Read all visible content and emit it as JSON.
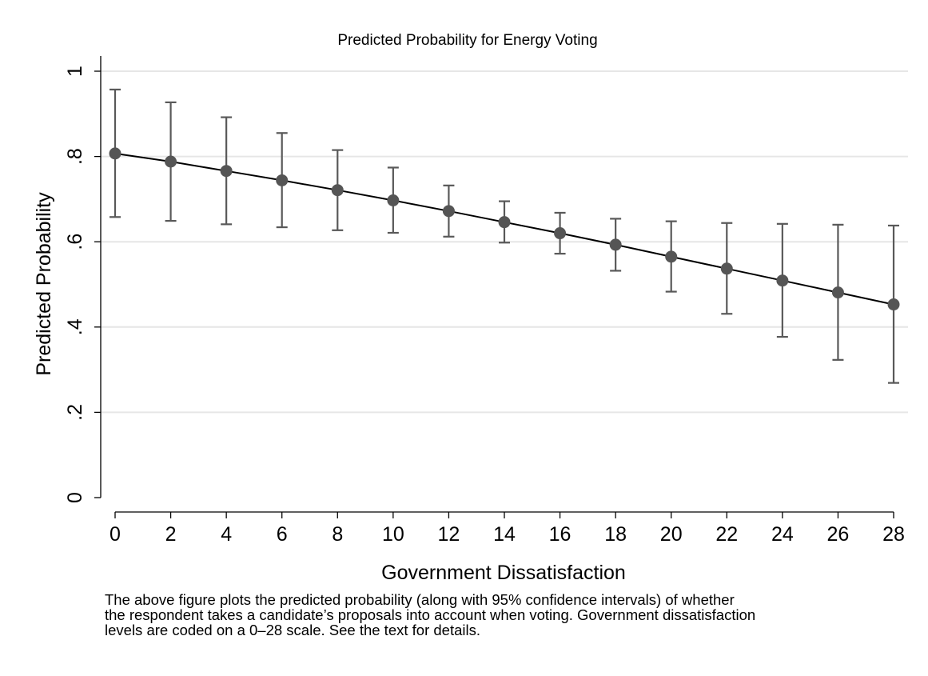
{
  "chart_data": {
    "type": "scatter",
    "title": "Predicted Probability for Energy Voting",
    "xlabel": "Government Dissatisfaction",
    "ylabel": "Predicted Probability",
    "xlim": [
      0,
      28
    ],
    "ylim": [
      0,
      1
    ],
    "xticks": [
      0,
      2,
      4,
      6,
      8,
      10,
      12,
      14,
      16,
      18,
      20,
      22,
      24,
      26,
      28
    ],
    "xtick_labels": [
      "0",
      "2",
      "4",
      "6",
      "8",
      "10",
      "12",
      "14",
      "16",
      "18",
      "20",
      "22",
      "24",
      "26",
      "28"
    ],
    "yticks": [
      0,
      0.2,
      0.4,
      0.6,
      0.8,
      1
    ],
    "ytick_labels": [
      "0",
      ".2",
      ".4",
      ".6",
      ".8",
      "1"
    ],
    "grid": true,
    "legend": false,
    "connect_points": true,
    "error_bars": "95% confidence intervals",
    "colors": {
      "point": "#555555",
      "ci": "#595959",
      "line": "#000000",
      "grid": "#e6e6e6"
    },
    "series": [
      {
        "x": [
          0,
          2,
          4,
          6,
          8,
          10,
          12,
          14,
          16,
          18,
          20,
          22,
          24,
          26,
          28
        ],
        "y": [
          0.807,
          0.788,
          0.766,
          0.744,
          0.721,
          0.697,
          0.672,
          0.646,
          0.62,
          0.593,
          0.565,
          0.537,
          0.509,
          0.481,
          0.453
        ],
        "ci_low": [
          0.658,
          0.649,
          0.641,
          0.634,
          0.627,
          0.621,
          0.612,
          0.598,
          0.572,
          0.532,
          0.483,
          0.431,
          0.377,
          0.323,
          0.269
        ],
        "ci_high": [
          0.957,
          0.927,
          0.892,
          0.855,
          0.815,
          0.774,
          0.732,
          0.695,
          0.668,
          0.654,
          0.648,
          0.644,
          0.642,
          0.64,
          0.638
        ]
      }
    ]
  },
  "note": {
    "lines": [
      "The above figure plots the predicted probability (along with 95% confidence intervals) of whether",
      "the respondent takes a candidate’s proposals into account when voting. Government dissatisfaction",
      "levels are coded on a 0–28 scale. See the text for details."
    ]
  }
}
